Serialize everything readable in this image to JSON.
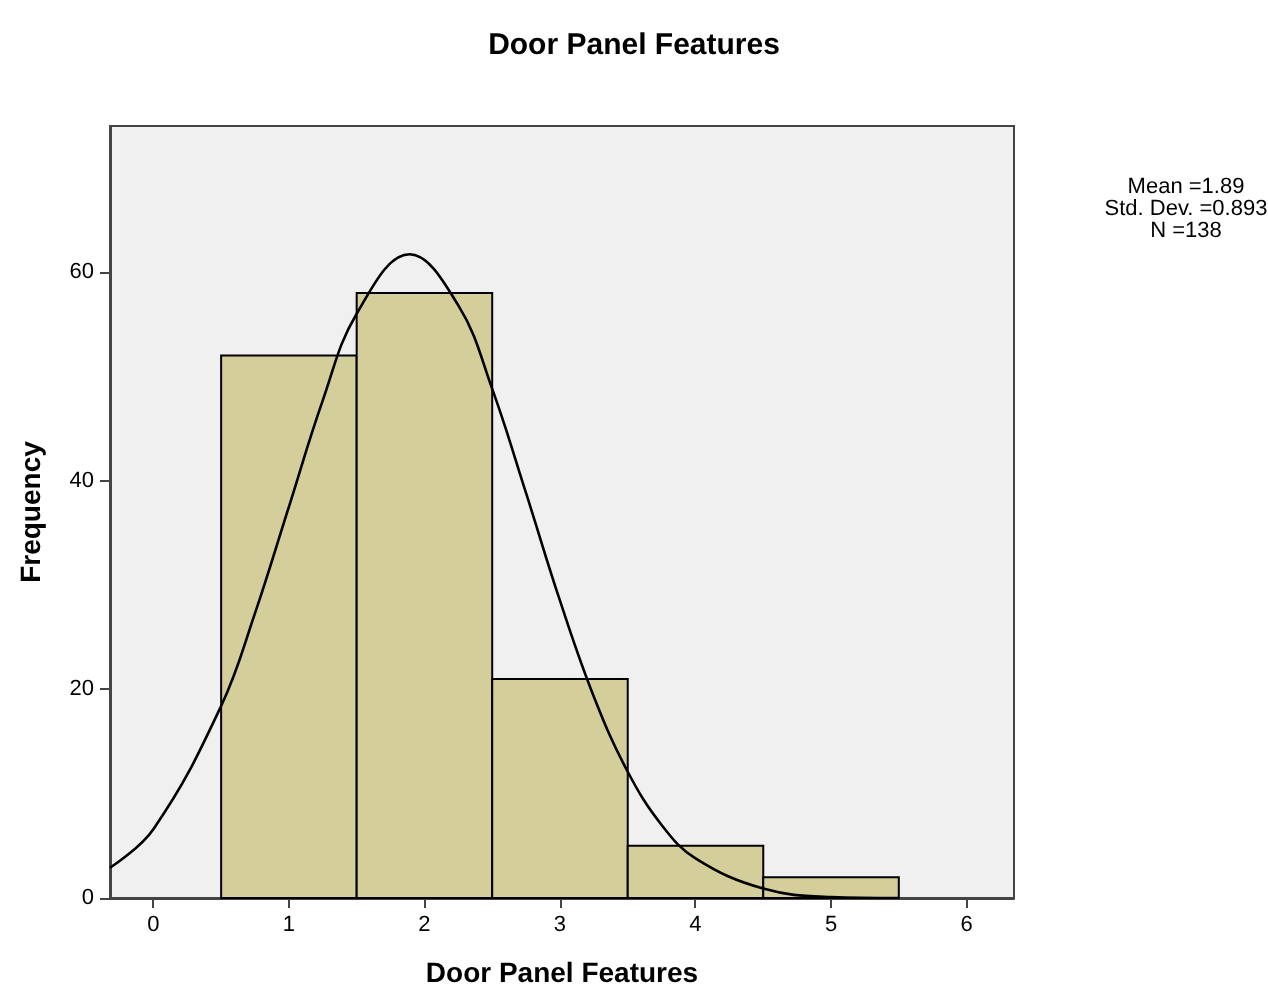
{
  "chart_data": {
    "type": "histogram",
    "title": "Door Panel Features",
    "xlabel": "Door Panel Features",
    "ylabel": "Frequency",
    "bins": [
      0.5,
      1.5,
      2.5,
      3.5,
      4.5,
      5.5
    ],
    "values": [
      52,
      58,
      21,
      5,
      2
    ],
    "color": "#d4cf9a",
    "series": [
      {
        "type": "line",
        "color": "#000000",
        "marker": "none",
        "line_style": "solid",
        "x": [
          -0.32,
          0,
          0.5,
          0.75,
          1,
          1.25,
          1.5,
          1.89,
          2.25,
          2.5,
          2.75,
          3,
          3.25,
          3.5,
          3.75,
          4,
          4.5,
          5,
          5.5
        ],
        "values": [
          2.9,
          6.6,
          18.4,
          27.3,
          37.5,
          47.7,
          56,
          61.7,
          56.8,
          48.8,
          38.8,
          28.5,
          19.3,
          12.1,
          7,
          3.8,
          0.9,
          0.1,
          0
        ]
      }
    ],
    "xlim": [
      -0.32,
      6.35
    ],
    "ylim": [
      0,
      74
    ],
    "xticks": [
      0,
      1,
      2,
      3,
      4,
      5,
      6
    ],
    "yticks": [
      0,
      20,
      40,
      60
    ],
    "grid": false,
    "annotations": [
      "Mean =1.89",
      "Std. Dev. =0.893",
      "N =138"
    ]
  }
}
